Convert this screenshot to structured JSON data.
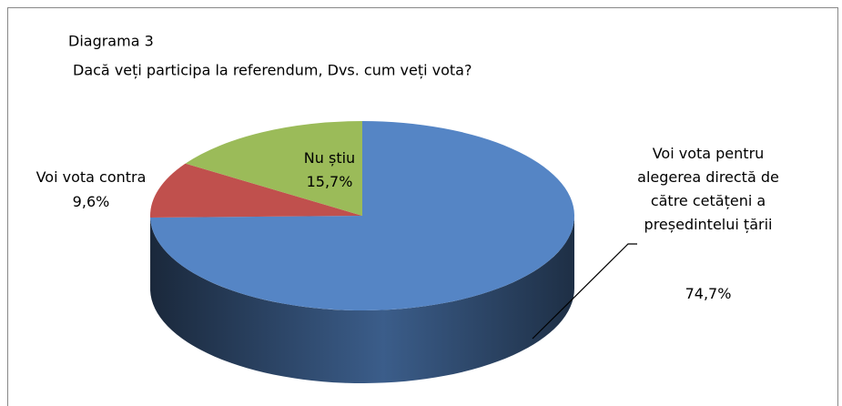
{
  "chart_data": {
    "type": "pie3d",
    "title": "Diagrama 3",
    "subtitle": "Dacă veți participa la referendum, Dvs. cum veți vota?",
    "categories": [
      "Voi vota pentru alegerea directă de către cetățeni a președintelui țării",
      "Voi vota contra",
      "Nu știu"
    ],
    "values": [
      74.7,
      9.6,
      15.7
    ],
    "value_labels": [
      "74,7%",
      "9,6%",
      "15,7%"
    ],
    "colors": [
      "#5585c5",
      "#c0504d",
      "#9bbb59"
    ]
  }
}
